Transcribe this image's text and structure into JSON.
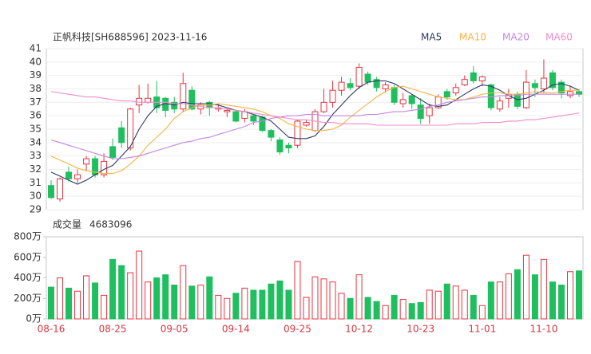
{
  "chart_data": {
    "type": "candlestick",
    "title": "正帆科技[SH688596] 2023-11-16",
    "categories": [
      "08-16",
      null,
      null,
      null,
      null,
      null,
      null,
      "08-25",
      null,
      null,
      null,
      null,
      null,
      null,
      "09-05",
      null,
      null,
      null,
      null,
      null,
      null,
      "09-14",
      null,
      null,
      null,
      null,
      null,
      null,
      "09-25",
      null,
      null,
      null,
      null,
      null,
      null,
      "10-12",
      null,
      null,
      null,
      null,
      null,
      null,
      "10-23",
      null,
      null,
      null,
      null,
      null,
      null,
      "11-01",
      null,
      null,
      null,
      null,
      null,
      null,
      "11-10",
      null,
      null,
      null,
      null
    ],
    "open": [
      30.8,
      29.8,
      31.8,
      31.3,
      32.4,
      32.8,
      31.6,
      33.7,
      35.1,
      33.6,
      36.8,
      37.0,
      37.4,
      37.3,
      37.0,
      36.5,
      37.9,
      36.5,
      37.0,
      36.5,
      36.3,
      36.3,
      35.8,
      36.0,
      35.9,
      34.9,
      34.2,
      33.8,
      33.8,
      35.3,
      34.9,
      36.3,
      37.0,
      37.9,
      38.4,
      38.2,
      39.1,
      38.7,
      38.0,
      38.1,
      36.9,
      37.5,
      36.8,
      36.0,
      36.6,
      37.8,
      37.7,
      38.3,
      39.2,
      38.6,
      38.3,
      36.5,
      37.3,
      37.6,
      36.6,
      38.4,
      38.0,
      39.2,
      38.5,
      37.5,
      37.8
    ],
    "high": [
      31.2,
      31.4,
      32.2,
      32.0,
      33.0,
      33.0,
      33.2,
      34.3,
      35.6,
      36.6,
      38.3,
      38.4,
      38.6,
      37.4,
      37.4,
      39.2,
      38.2,
      37.0,
      37.1,
      36.9,
      36.5,
      36.4,
      36.5,
      36.1,
      36.0,
      35.0,
      34.4,
      34.0,
      35.7,
      35.7,
      36.5,
      38.0,
      38.6,
      38.9,
      38.8,
      39.9,
      39.3,
      38.9,
      38.5,
      38.3,
      37.7,
      37.6,
      37.3,
      36.9,
      37.6,
      38.0,
      38.4,
      39.0,
      39.7,
      39.0,
      38.4,
      37.4,
      38.0,
      37.8,
      39.4,
      38.7,
      40.2,
      39.4,
      38.7,
      38.2,
      38.0
    ],
    "low": [
      29.8,
      29.6,
      31.1,
      31.0,
      31.9,
      31.4,
      31.4,
      32.7,
      33.6,
      33.4,
      36.2,
      36.9,
      36.2,
      35.9,
      36.2,
      36.3,
      36.4,
      36.1,
      36.0,
      36.3,
      35.9,
      35.5,
      35.5,
      35.3,
      34.8,
      34.1,
      33.1,
      33.2,
      33.6,
      35.2,
      34.8,
      36.2,
      36.6,
      37.5,
      37.9,
      38.0,
      38.3,
      37.8,
      37.7,
      36.8,
      36.6,
      36.5,
      35.4,
      35.4,
      36.5,
      37.2,
      37.5,
      38.2,
      38.4,
      38.2,
      36.4,
      36.3,
      36.6,
      36.5,
      36.5,
      37.4,
      37.7,
      37.9,
      37.3,
      37.3,
      37.4
    ],
    "close": [
      29.9,
      31.3,
      31.3,
      31.6,
      32.8,
      31.6,
      32.6,
      32.9,
      34.0,
      36.5,
      37.3,
      37.3,
      36.6,
      36.4,
      36.5,
      38.4,
      36.5,
      36.8,
      36.6,
      36.6,
      36.4,
      35.6,
      36.3,
      35.6,
      34.9,
      34.4,
      33.3,
      33.6,
      35.6,
      35.5,
      36.3,
      37.0,
      37.9,
      38.5,
      38.1,
      39.6,
      38.5,
      38.1,
      38.3,
      37.0,
      37.2,
      36.9,
      35.8,
      36.6,
      37.4,
      37.4,
      38.1,
      38.7,
      38.6,
      38.9,
      36.6,
      37.1,
      37.6,
      36.7,
      38.5,
      38.1,
      38.8,
      38.1,
      37.7,
      37.8,
      37.6
    ],
    "up_color": "#e8343f",
    "down_color": "#1fbf5f",
    "ylim": [
      29,
      41
    ],
    "yticks": [
      29,
      30,
      31,
      32,
      33,
      34,
      35,
      36,
      37,
      38,
      39,
      40,
      41
    ],
    "ma": [
      {
        "name": "MA5",
        "color": "#2c3a66",
        "values": [
          31.8,
          31.5,
          31.2,
          30.9,
          31.2,
          31.6,
          32.0,
          32.3,
          33.0,
          33.7,
          35.0,
          36.0,
          36.7,
          36.9,
          36.8,
          37.0,
          36.9,
          36.9,
          36.9,
          36.8,
          36.6,
          36.4,
          36.3,
          36.1,
          35.9,
          35.6,
          35.0,
          34.4,
          34.3,
          34.3,
          34.5,
          35.2,
          36.1,
          36.8,
          37.5,
          38.1,
          38.5,
          38.6,
          38.6,
          38.4,
          38.0,
          37.6,
          37.2,
          36.8,
          36.7,
          36.8,
          37.2,
          37.6,
          38.0,
          38.3,
          38.2,
          37.9,
          37.5,
          37.2,
          37.3,
          37.6,
          37.9,
          38.3,
          38.4,
          38.2,
          37.9
        ]
      },
      {
        "name": "MA10",
        "color": "#f5b342",
        "values": [
          33.0,
          32.7,
          32.4,
          32.1,
          31.9,
          31.8,
          31.7,
          31.7,
          31.9,
          32.4,
          33.0,
          33.8,
          34.4,
          35.0,
          35.8,
          36.3,
          36.6,
          36.8,
          36.8,
          36.9,
          36.8,
          36.7,
          36.6,
          36.5,
          36.3,
          36.0,
          35.8,
          35.4,
          35.2,
          35.0,
          34.9,
          34.9,
          35.0,
          35.3,
          35.9,
          36.4,
          36.9,
          37.4,
          37.8,
          38.1,
          38.2,
          38.0,
          37.8,
          37.6,
          37.4,
          37.3,
          37.2,
          37.2,
          37.4,
          37.6,
          37.7,
          37.7,
          37.6,
          37.6,
          37.7,
          37.8,
          37.7,
          37.7,
          37.8,
          37.9,
          37.9
        ]
      },
      {
        "name": "MA20",
        "color": "#c585e0",
        "values": [
          34.2,
          34.0,
          33.8,
          33.6,
          33.4,
          33.2,
          33.0,
          32.8,
          32.8,
          32.9,
          33.0,
          33.2,
          33.4,
          33.6,
          33.8,
          34.0,
          34.1,
          34.3,
          34.4,
          34.6,
          34.8,
          35.0,
          35.2,
          35.5,
          35.6,
          35.8,
          35.9,
          36.0,
          36.0,
          36.1,
          36.1,
          36.0,
          36.0,
          36.0,
          36.0,
          36.0,
          36.1,
          36.1,
          36.2,
          36.3,
          36.3,
          36.4,
          36.5,
          36.7,
          36.8,
          37.0,
          37.1,
          37.2,
          37.3,
          37.4,
          37.4,
          37.5,
          37.5,
          37.5,
          37.6,
          37.6,
          37.6,
          37.6,
          37.6,
          37.6,
          37.6
        ]
      },
      {
        "name": "MA60",
        "color": "#f28cc8",
        "values": [
          37.8,
          37.7,
          37.6,
          37.5,
          37.4,
          37.4,
          37.3,
          37.2,
          37.1,
          37.1,
          37.0,
          37.0,
          37.0,
          37.0,
          36.9,
          36.9,
          36.8,
          36.7,
          36.6,
          36.6,
          36.5,
          36.4,
          36.3,
          36.2,
          36.1,
          36.0,
          35.9,
          35.8,
          35.7,
          35.7,
          35.6,
          35.5,
          35.5,
          35.4,
          35.4,
          35.4,
          35.4,
          35.3,
          35.3,
          35.3,
          35.3,
          35.3,
          35.3,
          35.3,
          35.3,
          35.3,
          35.4,
          35.4,
          35.4,
          35.5,
          35.5,
          35.5,
          35.6,
          35.6,
          35.7,
          35.7,
          35.8,
          35.9,
          36.0,
          36.1,
          36.2
        ]
      }
    ],
    "volume": {
      "title": "成交量",
      "latest": 4683096,
      "values": [
        310,
        400,
        300,
        270,
        420,
        350,
        230,
        580,
        520,
        450,
        660,
        360,
        400,
        430,
        330,
        520,
        320,
        330,
        410,
        230,
        200,
        250,
        300,
        280,
        280,
        340,
        370,
        280,
        560,
        210,
        410,
        390,
        360,
        250,
        200,
        430,
        210,
        170,
        130,
        230,
        190,
        150,
        160,
        280,
        270,
        340,
        320,
        280,
        230,
        130,
        360,
        360,
        440,
        480,
        620,
        430,
        580,
        360,
        330,
        460,
        468
      ],
      "ylim": [
        0,
        800
      ],
      "yticks": [
        {
          "value": 0,
          "label": "0万"
        },
        {
          "value": 200,
          "label": "200万"
        },
        {
          "value": 400,
          "label": "400万"
        },
        {
          "value": 600,
          "label": "600万"
        },
        {
          "value": 800,
          "label": "800万"
        }
      ]
    }
  }
}
